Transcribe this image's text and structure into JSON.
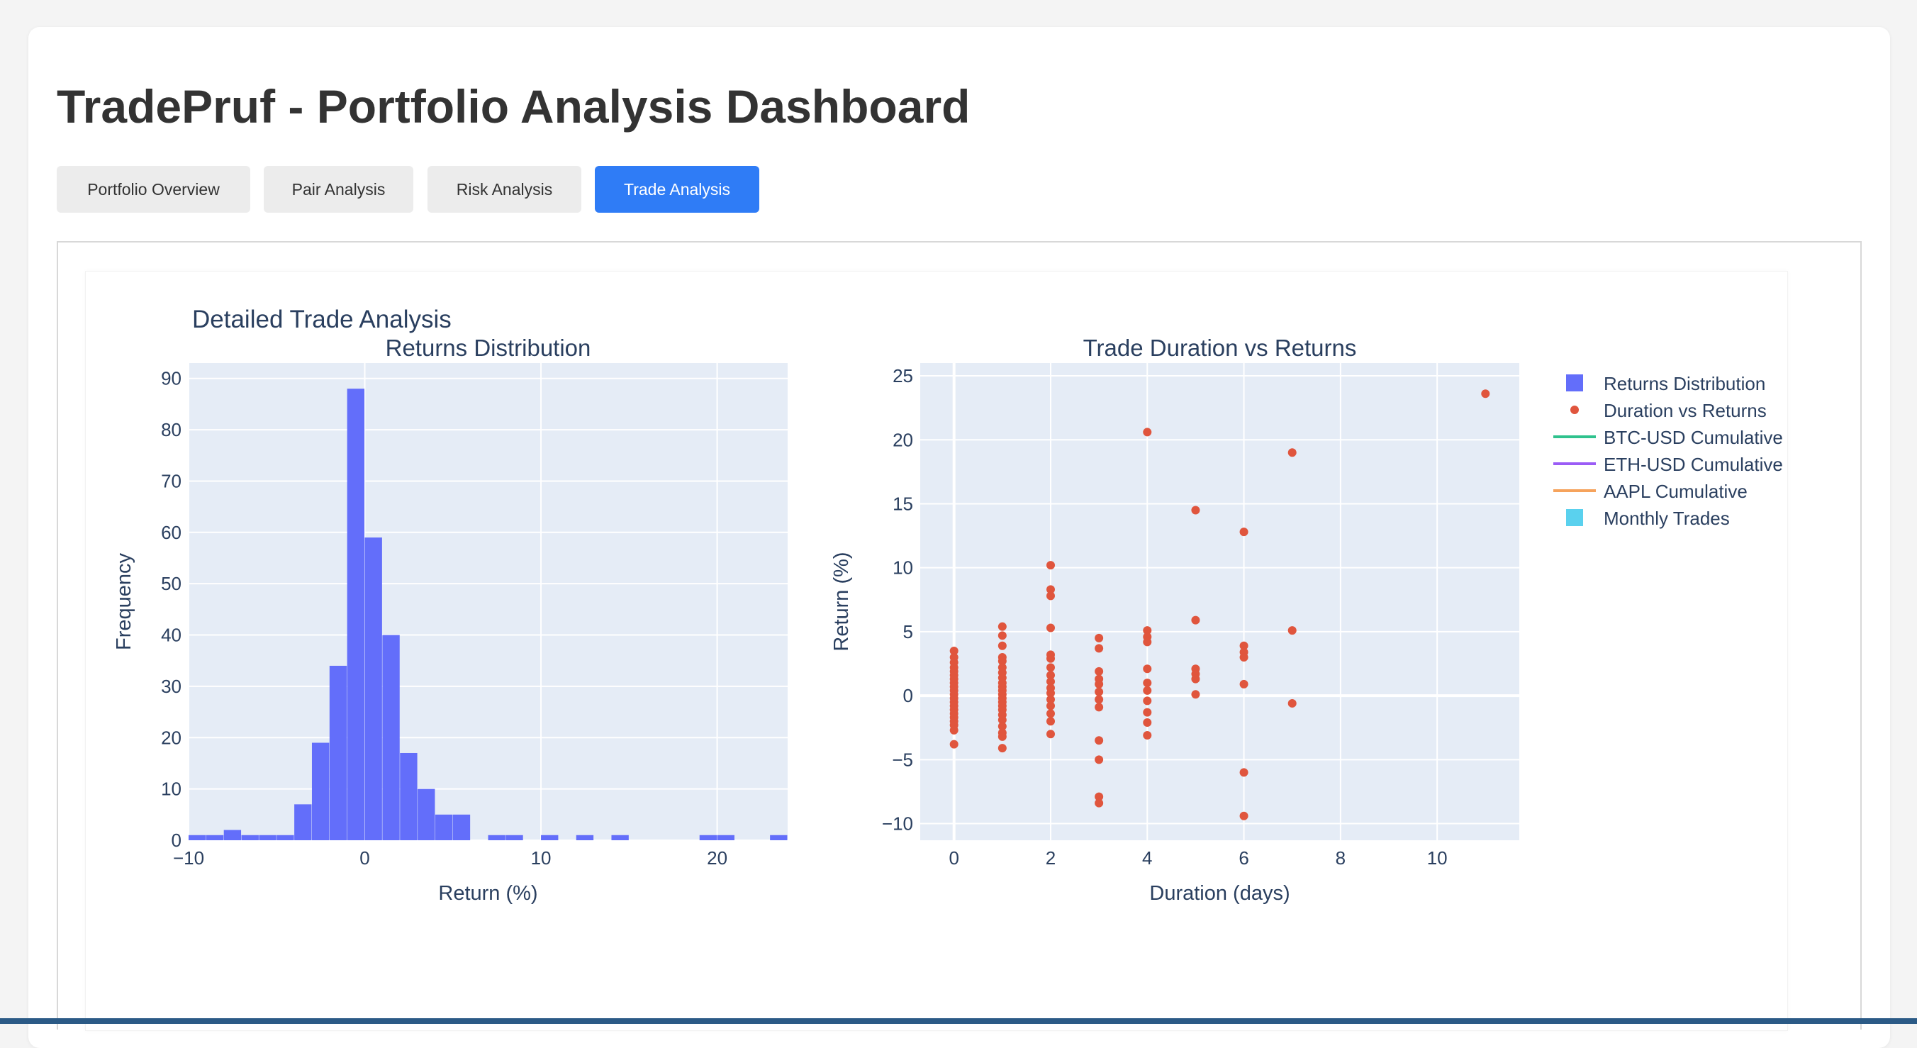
{
  "header": {
    "title": "TradePruf - Portfolio Analysis Dashboard"
  },
  "tabs": [
    {
      "label": "Portfolio Overview",
      "active": false
    },
    {
      "label": "Pair Analysis",
      "active": false
    },
    {
      "label": "Risk Analysis",
      "active": false
    },
    {
      "label": "Trade Analysis",
      "active": true
    }
  ],
  "figure": {
    "title": "Detailed Trade Analysis"
  },
  "legend": {
    "position": "top-right",
    "items": [
      {
        "label": "Returns Distribution",
        "symbol": "square",
        "color": "#636efa"
      },
      {
        "label": "Duration vs Returns",
        "symbol": "circle",
        "color": "#e0553d"
      },
      {
        "label": "BTC-USD Cumulative",
        "symbol": "line",
        "color": "#2fc28d"
      },
      {
        "label": "ETH-USD Cumulative",
        "symbol": "line",
        "color": "#9b5cf6"
      },
      {
        "label": "AAPL Cumulative",
        "symbol": "line",
        "color": "#f6a35c"
      },
      {
        "label": "Monthly Trades",
        "symbol": "square",
        "color": "#5ad1ee"
      }
    ]
  },
  "colors": {
    "accent": "#2f7cf6",
    "plot_bg": "#e5ecf6",
    "histogram": "#636efa",
    "scatter": "#e0553d"
  },
  "chart_data": [
    {
      "type": "bar",
      "title": "Returns Distribution",
      "xlabel": "Return (%)",
      "ylabel": "Frequency",
      "xlim": [
        -10,
        24
      ],
      "ylim": [
        0,
        93
      ],
      "xticks": [
        -10,
        0,
        10,
        20
      ],
      "yticks": [
        0,
        10,
        20,
        30,
        40,
        50,
        60,
        70,
        80,
        90
      ],
      "grid": true,
      "bins": [
        {
          "x0": -10,
          "x1": -9,
          "count": 1
        },
        {
          "x0": -9,
          "x1": -8,
          "count": 1
        },
        {
          "x0": -8,
          "x1": -7,
          "count": 2
        },
        {
          "x0": -7,
          "x1": -6,
          "count": 1
        },
        {
          "x0": -6,
          "x1": -5,
          "count": 1
        },
        {
          "x0": -5,
          "x1": -4,
          "count": 1
        },
        {
          "x0": -4,
          "x1": -3,
          "count": 7
        },
        {
          "x0": -3,
          "x1": -2,
          "count": 19
        },
        {
          "x0": -2,
          "x1": -1,
          "count": 34
        },
        {
          "x0": -1,
          "x1": 0,
          "count": 88
        },
        {
          "x0": 0,
          "x1": 1,
          "count": 59
        },
        {
          "x0": 1,
          "x1": 2,
          "count": 40
        },
        {
          "x0": 2,
          "x1": 3,
          "count": 17
        },
        {
          "x0": 3,
          "x1": 4,
          "count": 10
        },
        {
          "x0": 4,
          "x1": 5,
          "count": 5
        },
        {
          "x0": 5,
          "x1": 6,
          "count": 5
        },
        {
          "x0": 7,
          "x1": 8,
          "count": 1
        },
        {
          "x0": 8,
          "x1": 9,
          "count": 1
        },
        {
          "x0": 10,
          "x1": 11,
          "count": 1
        },
        {
          "x0": 12,
          "x1": 13,
          "count": 1
        },
        {
          "x0": 14,
          "x1": 15,
          "count": 1
        },
        {
          "x0": 19,
          "x1": 20,
          "count": 1
        },
        {
          "x0": 20,
          "x1": 21,
          "count": 1
        },
        {
          "x0": 23,
          "x1": 24,
          "count": 1
        }
      ]
    },
    {
      "type": "scatter",
      "title": "Trade Duration vs Returns",
      "xlabel": "Duration (days)",
      "ylabel": "Return (%)",
      "xlim": [
        -0.7,
        11.7
      ],
      "ylim": [
        -11.3,
        26
      ],
      "xticks": [
        0,
        2,
        4,
        6,
        8,
        10
      ],
      "yticks": [
        -10,
        -5,
        0,
        5,
        10,
        15,
        20,
        25
      ],
      "grid": true,
      "points": [
        [
          0,
          3.5
        ],
        [
          0,
          3.0
        ],
        [
          0,
          2.6
        ],
        [
          0,
          2.2
        ],
        [
          0,
          1.9
        ],
        [
          0,
          1.6
        ],
        [
          0,
          1.3
        ],
        [
          0,
          1.0
        ],
        [
          0,
          0.7
        ],
        [
          0,
          0.4
        ],
        [
          0,
          0.1
        ],
        [
          0,
          -0.2
        ],
        [
          0,
          -0.5
        ],
        [
          0,
          -0.8
        ],
        [
          0,
          -1.1
        ],
        [
          0,
          -1.4
        ],
        [
          0,
          -1.7
        ],
        [
          0,
          -2.0
        ],
        [
          0,
          -2.3
        ],
        [
          0,
          -2.7
        ],
        [
          0,
          -3.8
        ],
        [
          1,
          5.4
        ],
        [
          1,
          4.7
        ],
        [
          1,
          3.9
        ],
        [
          1,
          3.0
        ],
        [
          1,
          2.7
        ],
        [
          1,
          2.2
        ],
        [
          1,
          1.8
        ],
        [
          1,
          1.4
        ],
        [
          1,
          1.0
        ],
        [
          1,
          0.7
        ],
        [
          1,
          0.4
        ],
        [
          1,
          0.1
        ],
        [
          1,
          -0.2
        ],
        [
          1,
          -0.5
        ],
        [
          1,
          -0.8
        ],
        [
          1,
          -1.1
        ],
        [
          1,
          -1.5
        ],
        [
          1,
          -1.9
        ],
        [
          1,
          -2.4
        ],
        [
          1,
          -2.9
        ],
        [
          1,
          -3.2
        ],
        [
          1,
          -4.1
        ],
        [
          2,
          10.2
        ],
        [
          2,
          8.3
        ],
        [
          2,
          7.8
        ],
        [
          2,
          5.3
        ],
        [
          2,
          3.2
        ],
        [
          2,
          2.9
        ],
        [
          2,
          2.2
        ],
        [
          2,
          1.6
        ],
        [
          2,
          1.1
        ],
        [
          2,
          0.6
        ],
        [
          2,
          0.2
        ],
        [
          2,
          -0.3
        ],
        [
          2,
          -0.8
        ],
        [
          2,
          -1.4
        ],
        [
          2,
          -2.0
        ],
        [
          2,
          -3.0
        ],
        [
          3,
          4.5
        ],
        [
          3,
          3.7
        ],
        [
          3,
          1.9
        ],
        [
          3,
          1.3
        ],
        [
          3,
          0.9
        ],
        [
          3,
          0.3
        ],
        [
          3,
          -0.3
        ],
        [
          3,
          -0.9
        ],
        [
          3,
          -3.5
        ],
        [
          3,
          -5.0
        ],
        [
          3,
          -7.9
        ],
        [
          3,
          -8.4
        ],
        [
          4,
          20.6
        ],
        [
          4,
          5.1
        ],
        [
          4,
          4.6
        ],
        [
          4,
          4.2
        ],
        [
          4,
          2.1
        ],
        [
          4,
          1.0
        ],
        [
          4,
          0.4
        ],
        [
          4,
          -0.4
        ],
        [
          4,
          -1.3
        ],
        [
          4,
          -2.1
        ],
        [
          4,
          -3.1
        ],
        [
          5,
          14.5
        ],
        [
          5,
          5.9
        ],
        [
          5,
          2.1
        ],
        [
          5,
          1.7
        ],
        [
          5,
          1.3
        ],
        [
          5,
          0.1
        ],
        [
          6,
          12.8
        ],
        [
          6,
          3.9
        ],
        [
          6,
          3.4
        ],
        [
          6,
          3.0
        ],
        [
          6,
          0.9
        ],
        [
          6,
          -6.0
        ],
        [
          6,
          -9.4
        ],
        [
          7,
          19.0
        ],
        [
          7,
          5.1
        ],
        [
          7,
          -0.6
        ],
        [
          11,
          23.6
        ]
      ]
    }
  ]
}
